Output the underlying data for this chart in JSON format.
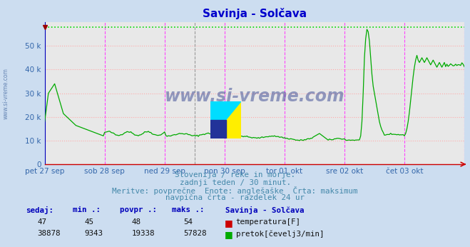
{
  "title": "Savinja - Solčava",
  "bg_color": "#ccddf0",
  "plot_bg_color": "#e8e8e8",
  "grid_color_h": "#ffaaaa",
  "grid_color_v_major": "#ff44ff",
  "grid_color_v_minor": "#888888",
  "max_line_color": "#00dd00",
  "flow_color": "#00aa00",
  "temp_color": "#cc0000",
  "max_flow": 57828,
  "ymax": 60000,
  "xmax": 336,
  "x_tick_labels": [
    "pet 27 sep",
    "sob 28 sep",
    "ned 29 sep",
    "pon 30 sep",
    "tor 01 okt",
    "sre 02 okt",
    "čet 03 okt"
  ],
  "x_tick_positions": [
    0,
    48,
    96,
    144,
    192,
    240,
    288
  ],
  "yticks": [
    0,
    10000,
    20000,
    30000,
    40000,
    50000
  ],
  "ytick_labels": [
    "0",
    "10 k",
    "20 k",
    "30 k",
    "40 k",
    "50 k"
  ],
  "subtitle_lines": [
    "Slovenija / reke in morje.",
    "zadnji teden / 30 minut.",
    "Meritve: povprečne  Enote: anglešaške  Črta: maksimum",
    "navpična črta - razdelek 24 ur"
  ],
  "temp_stats": [
    47,
    45,
    48,
    54
  ],
  "flow_stats": [
    38878,
    9343,
    19338,
    57828
  ],
  "watermark": "www.si-vreme.com",
  "left_watermark": "www.si-vreme.com",
  "stat_headers": [
    "sedaj:",
    "min .:",
    "povpr .:",
    "maks .:",
    "Savinja - Solčava"
  ]
}
